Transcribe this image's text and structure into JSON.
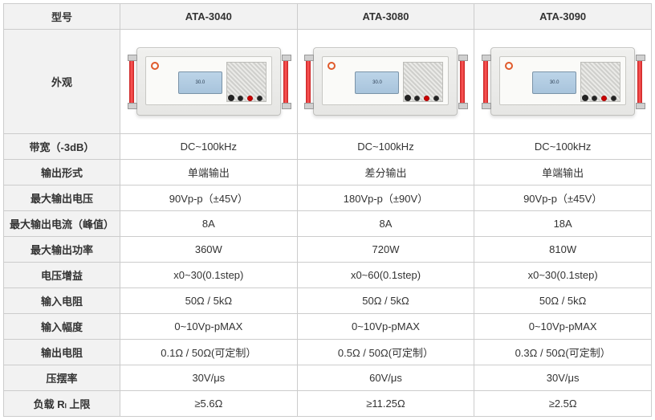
{
  "table": {
    "header_label": "型号",
    "models": [
      "ATA-3040",
      "ATA-3080",
      "ATA-3090"
    ],
    "appearance_label": "外观",
    "lcd_text": "30.0",
    "rows": [
      {
        "label": "带宽（-3dB）",
        "v": [
          "DC~100kHz",
          "DC~100kHz",
          "DC~100kHz"
        ]
      },
      {
        "label": "输出形式",
        "v": [
          "单端输出",
          "差分输出",
          "单端输出"
        ]
      },
      {
        "label": "最大输出电压",
        "v": [
          "90Vp-p（±45V）",
          "180Vp-p（±90V）",
          "90Vp-p（±45V）"
        ]
      },
      {
        "label": "最大输出电流（峰值）",
        "v": [
          "8A",
          "8A",
          "18A"
        ]
      },
      {
        "label": "最大输出功率",
        "v": [
          "360W",
          "720W",
          "810W"
        ]
      },
      {
        "label": "电压增益",
        "v": [
          "x0~30(0.1step)",
          "x0~60(0.1step)",
          "x0~30(0.1step)"
        ]
      },
      {
        "label": "输入电阻",
        "v": [
          "50Ω / 5kΩ",
          "50Ω / 5kΩ",
          "50Ω / 5kΩ"
        ]
      },
      {
        "label": "输入幅度",
        "v": [
          "0~10Vp-pMAX",
          "0~10Vp-pMAX",
          "0~10Vp-pMAX"
        ]
      },
      {
        "label": "输出电阻",
        "v": [
          "0.1Ω / 50Ω(可定制）",
          "0.5Ω / 50Ω(可定制）",
          "0.3Ω / 50Ω(可定制）"
        ]
      },
      {
        "label": "压摆率",
        "v": [
          "30V/μs",
          "60V/μs",
          "30V/μs"
        ]
      },
      {
        "label": "负载 Rₗ 上限",
        "v": [
          "≥5.6Ω",
          "≥11.25Ω",
          "≥2.5Ω"
        ]
      }
    ]
  },
  "style": {
    "border_color": "#cccccc",
    "header_bg": "#f2f2f2",
    "text_color": "#333333",
    "col_widths": [
      "145px",
      "auto",
      "auto",
      "auto"
    ]
  }
}
